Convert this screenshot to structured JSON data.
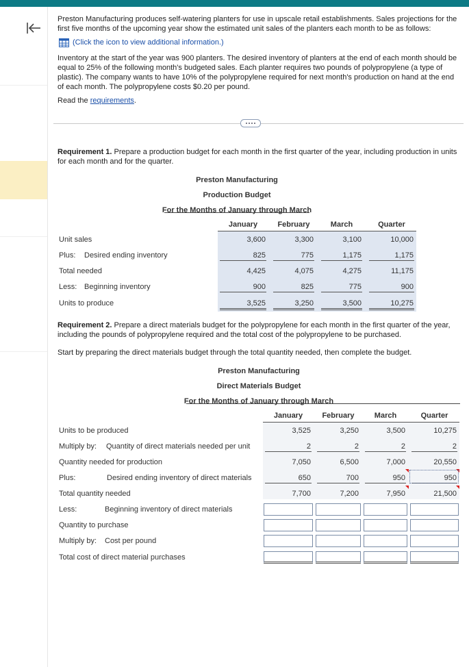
{
  "intro": {
    "paragraph_1": "Preston Manufacturing produces self-watering planters for use in upscale retail establishments. Sales projections for the first five months of the upcoming year show the estimated unit sales of the planters each month to be as follows:",
    "info_link": "(Click the icon to view additional information.)",
    "paragraph_2": "Inventory at the start of the year was 900 planters. The desired inventory of planters at the end of each month should be equal to 25% of the following month's budgeted sales. Each planter requires two pounds of polypropylene (a type of plastic). The company wants to have 10% of the polypropylene required for next month's production on hand at the end of each month. The polypropylene costs $0.20 per pound.",
    "read_prefix": "Read the",
    "read_link": "requirements",
    "read_suffix": "."
  },
  "requirement_1": {
    "label": "Requirement 1.",
    "text": "Prepare a production budget for each month in the first quarter of the year, including production in units for each month and for the quarter."
  },
  "production_budget": {
    "company": "Preston Manufacturing",
    "title": "Production Budget",
    "period": "For the Months of January through March",
    "columns": [
      "January",
      "February",
      "March",
      "Quarter"
    ],
    "rows": [
      {
        "label": "Unit sales",
        "values": [
          "3,600",
          "3,300",
          "3,100",
          "10,000"
        ]
      },
      {
        "label": "Plus:",
        "sublabel": "Desired ending inventory",
        "values": [
          "825",
          "775",
          "1,175",
          "1,175"
        ]
      },
      {
        "label": "Total needed",
        "values": [
          "4,425",
          "4,075",
          "4,275",
          "11,175"
        ]
      },
      {
        "label": "Less:",
        "sublabel": "Beginning inventory",
        "values": [
          "900",
          "825",
          "775",
          "900"
        ]
      },
      {
        "label": "Units to produce",
        "values": [
          "3,525",
          "3,250",
          "3,500",
          "10,275"
        ]
      }
    ]
  },
  "requirement_2": {
    "label": "Requirement 2.",
    "text": "Prepare a direct materials budget for the polypropylene for each month in the first quarter of the year, including the pounds of polypropylene required and the total cost of the polypropylene to be purchased.",
    "instruction": "Start by preparing the direct materials budget through the total quantity needed, then complete the budget."
  },
  "materials_budget": {
    "company": "Preston Manufacturing",
    "title": "Direct Materials Budget",
    "period": "For the Months of January through March",
    "columns": [
      "January",
      "February",
      "March",
      "Quarter"
    ],
    "rows": [
      {
        "label": "Units to be produced",
        "values": [
          "3,525",
          "3,250",
          "3,500",
          "10,275"
        ]
      },
      {
        "label": "Multiply by:",
        "sublabel": "Quantity of direct materials needed per unit",
        "values": [
          "2",
          "2",
          "2",
          "2"
        ]
      },
      {
        "label": "Quantity needed for production",
        "values": [
          "7,050",
          "6,500",
          "7,000",
          "20,550"
        ]
      },
      {
        "label": "Plus:",
        "sublabel": "Desired ending inventory of direct materials",
        "values": [
          "650",
          "700",
          "950",
          "950"
        ]
      },
      {
        "label": "Total quantity needed",
        "values": [
          "7,700",
          "7,200",
          "7,950",
          "21,500"
        ]
      },
      {
        "label": "Less:",
        "sublabel": "Beginning inventory of direct materials"
      },
      {
        "label": "Quantity to purchase"
      },
      {
        "label": "Multiply by:",
        "sublabel": "Cost per pound"
      },
      {
        "label": "Total cost of direct material purchases"
      }
    ]
  }
}
